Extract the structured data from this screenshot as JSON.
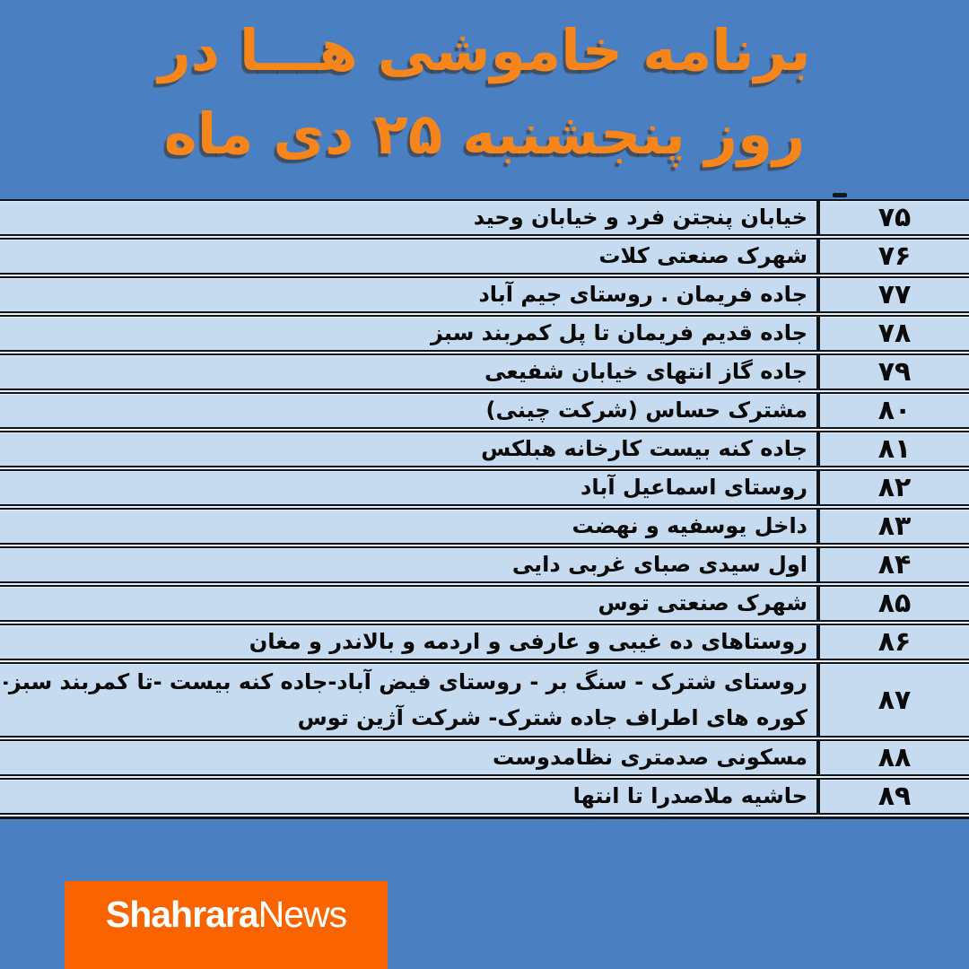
{
  "title": {
    "line1": "برنامه خاموشی هـــا در",
    "line2": "روز پنجشنبه ۲۵ دی ماه"
  },
  "table": {
    "rows": [
      {
        "num": "۷۵",
        "lines": [
          "خیابان پنجتن فرد و خیابان وحید"
        ]
      },
      {
        "num": "۷۶",
        "lines": [
          "شهرک صنعتی کلات"
        ]
      },
      {
        "num": "۷۷",
        "lines": [
          "جاده فریمان . روستای جیم آباد"
        ]
      },
      {
        "num": "۷۸",
        "lines": [
          "جاده قدیم فریمان تا پل کمربند سبز"
        ]
      },
      {
        "num": "۷۹",
        "lines": [
          "جاده گاز انتهای خیابان شفیعی"
        ]
      },
      {
        "num": "۸۰",
        "lines": [
          "مشترک حساس (شرکت چینی)"
        ]
      },
      {
        "num": "۸۱",
        "lines": [
          "جاده کنه بیست کارخانه هبلکس"
        ]
      },
      {
        "num": "۸۲",
        "lines": [
          "روستای اسماعیل آباد"
        ]
      },
      {
        "num": "۸۳",
        "lines": [
          "داخل یوسفیه و نهضت"
        ]
      },
      {
        "num": "۸۴",
        "lines": [
          "اول سیدی صبای غربی دایی"
        ]
      },
      {
        "num": "۸۵",
        "lines": [
          "شهرک صنعتی توس"
        ]
      },
      {
        "num": "۸۶",
        "lines": [
          "روستاهای ده غیبی و عارفی و اردمه و بالاندر و مغان"
        ]
      },
      {
        "num": "۸۷",
        "lines": [
          "روستای شترک - سنگ بر - روستای فیض آباد-جاده کنه بیست -تا کمربند سبز-",
          "کوره های اطراف جاده شترک- شرکت آژین توس"
        ]
      },
      {
        "num": "۸۸",
        "lines": [
          "مسکونی صدمتری نظامدوست"
        ]
      },
      {
        "num": "۸۹",
        "lines": [
          "حاشیه ملاصدرا تا انتها"
        ]
      }
    ]
  },
  "footer": {
    "brand_bold": "Shahrara",
    "brand_regular": "News"
  },
  "colors": {
    "bg": "#4a7fc1",
    "row_fill": "#c6dbef",
    "border_dark": "#11161d",
    "gap_light": "#e9eef4",
    "title_orange": "#f6861c",
    "brand_orange": "#fa6400",
    "text_black": "#0a0a0a"
  }
}
